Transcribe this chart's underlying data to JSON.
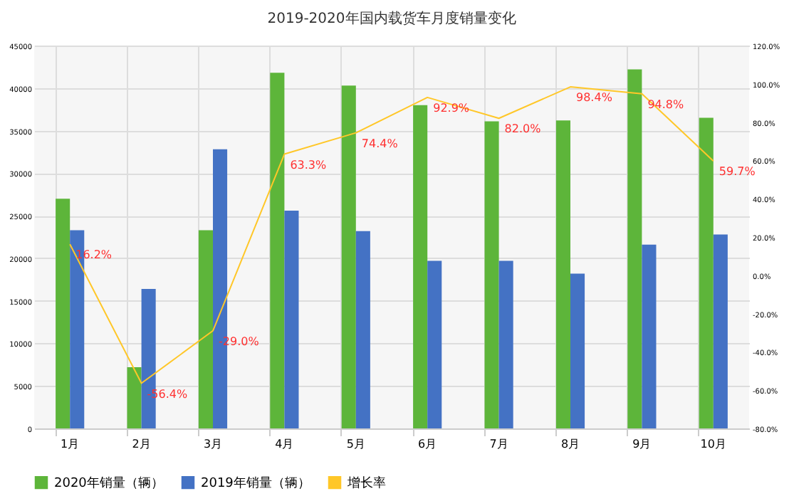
{
  "chart_data": {
    "type": "bar",
    "title": "2019-2020年国内载货车月度销量变化",
    "categories": [
      "1月",
      "2月",
      "3月",
      "4月",
      "5月",
      "6月",
      "7月",
      "8月",
      "9月",
      "10月"
    ],
    "series": [
      {
        "name": "2020年销量（辆）",
        "color": "#5db53a",
        "values": [
          27000,
          7200,
          23300,
          41800,
          40300,
          38000,
          36100,
          36200,
          42200,
          36500
        ]
      },
      {
        "name": "2019年销量（辆）",
        "color": "#4472c4",
        "values": [
          23300,
          16400,
          32800,
          25600,
          23200,
          19700,
          19700,
          18200,
          21600,
          22800
        ]
      },
      {
        "name": "增长率",
        "type": "line",
        "axis": "y2",
        "color": "#ffc728",
        "values": [
          16.2,
          -56.4,
          -29.0,
          63.3,
          74.4,
          92.9,
          82.0,
          98.4,
          94.8,
          59.7
        ],
        "value_labels": [
          "16.2%",
          "-56.4%",
          "-29.0%",
          "63.3%",
          "74.4%",
          "92.9%",
          "82.0%",
          "98.4%",
          "94.8%",
          "59.7%"
        ]
      }
    ],
    "ylim": [
      0,
      45000
    ],
    "yticks": [
      0,
      5000,
      10000,
      15000,
      20000,
      25000,
      30000,
      35000,
      40000,
      45000
    ],
    "y2lim": [
      -80,
      120
    ],
    "y2ticks": [
      {
        "value": -80,
        "label": "-80.0%"
      },
      {
        "value": -60,
        "label": "-60.0%"
      },
      {
        "value": -40,
        "label": "-40.0%"
      },
      {
        "value": -20,
        "label": "-20.0%"
      },
      {
        "value": 0,
        "label": "0.0%"
      },
      {
        "value": 20,
        "label": "20.0%"
      },
      {
        "value": 40,
        "label": "40.0%"
      },
      {
        "value": 60,
        "label": "60.0%"
      },
      {
        "value": 80,
        "label": "80.0%"
      },
      {
        "value": 100,
        "label": "100.0%"
      },
      {
        "value": 120,
        "label": "120.0%"
      }
    ],
    "grid": true,
    "legend": "bottom",
    "marker": "none"
  }
}
